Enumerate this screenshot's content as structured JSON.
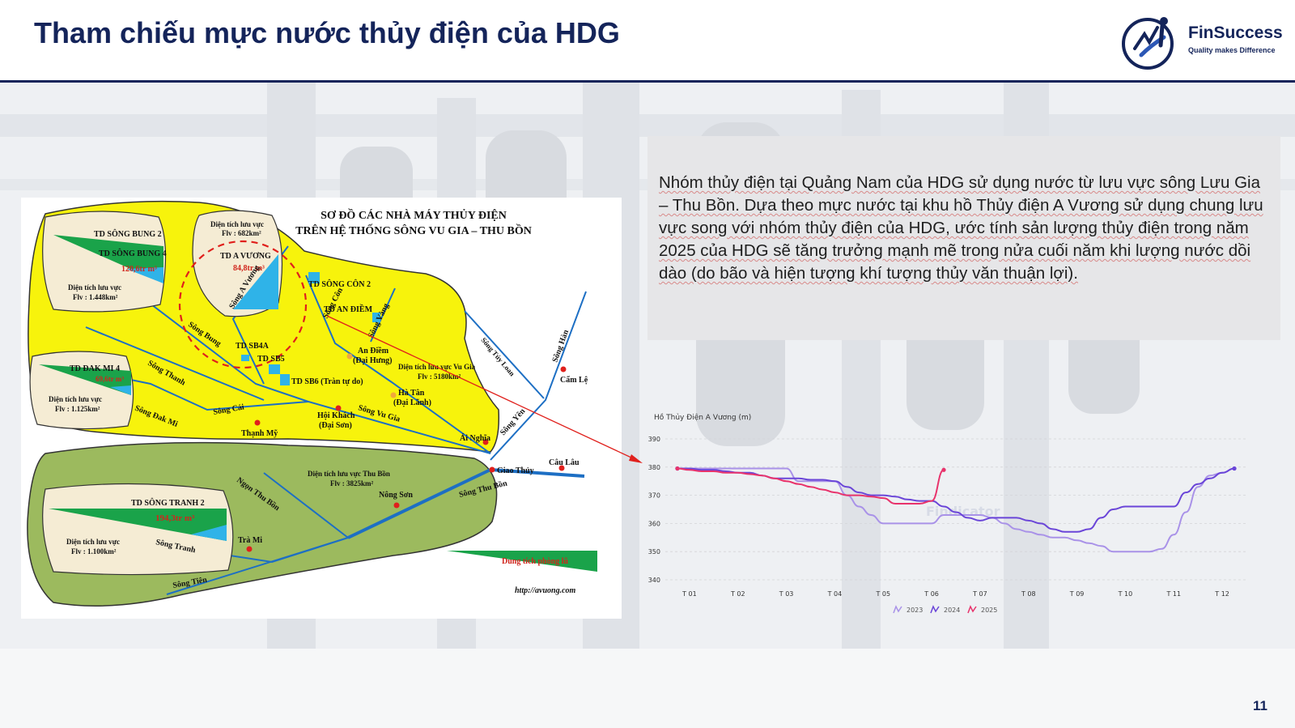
{
  "header": {
    "title": "Tham chiếu mực nước thủy điện của HDG",
    "logo_name": "FinSuccess",
    "logo_tagline": "Quality makes Difference"
  },
  "colors": {
    "navy": "#14245a",
    "map_yellow": "#f7f30c",
    "map_green": "#9cba5e",
    "river_blue": "#1d6fc4",
    "series_2023": "#a992e8",
    "series_2024": "#6a45d8",
    "series_2025": "#e8336c"
  },
  "map": {
    "title_line1": "SƠ ĐỒ CÁC NHÀ MÁY THỦY ĐIỆN",
    "title_line2": "TRÊN HỆ THỐNG SÔNG VU GIA – THU BỒN",
    "song_bung": {
      "plant1": "TD SÔNG BUNG 2",
      "plant2": "TD SÔNG BUNG 4",
      "volume": "120,6tr m³",
      "area_label": "Diện tích lưu vực",
      "area_value": "Flv : 1.448km²"
    },
    "a_vuong": {
      "area_label": "Diện tích lưu vực",
      "area_value": "Flv : 682km²",
      "plant": "TD A VƯƠNG",
      "volume": "84,8tr m³",
      "river": "Sông A Vương"
    },
    "dak_mi": {
      "plant": "TD ĐAK MI 4",
      "volume": "69,6tr m³",
      "area_label": "Diện tích lưu vực",
      "area_value": "Flv : 1.125km²"
    },
    "song_tranh": {
      "plant": "TD SÔNG TRANH 2",
      "volume": "194,3tr m³",
      "area_label": "Diện tích lưu vực",
      "area_value": "Flv : 1.100km²",
      "river": "Sông Tranh"
    },
    "plants": {
      "song_con": "TD SÔNG CÔN 2",
      "an_diem": "TD AN ĐIỀM",
      "sb4a": "TD SB4A",
      "sb5": "TD SB5",
      "sb6": "TD SB6 (Tràn tự do)"
    },
    "vu_gia": {
      "area_label": "Diện tích lưu vực Vu Gia",
      "area_value": "Flv : 5180km²"
    },
    "thu_bon": {
      "area_label": "Diện tích lưu vực Thu Bồn",
      "area_value": "Flv : 3825km²"
    },
    "rivers": {
      "bung": "Sông Bung",
      "con": "Sông Côn",
      "vang": "Sông Vàng",
      "thanh": "Sông Thanh",
      "dak_mi": "Sông Đak Mi",
      "cai": "Sông Cái",
      "vu_gia": "Sông Vu Gia",
      "tuy_loan": "Sông Túy Loan",
      "han": "Sông Hàn",
      "yen": "Sông Yên",
      "thu_bon": "Sông Thu Bồn",
      "ngon_thu_bon": "Ngọn Thu Bồn",
      "tien": "Sông Tiên"
    },
    "places": {
      "an_diem_1": "An Điềm",
      "an_diem_2": "(Đại Hưng)",
      "ha_tan_1": "Hà Tân",
      "ha_tan_2": "(Đại Lãnh)",
      "hoi_khach_1": "Hội Khách",
      "hoi_khach_2": "(Đại Sơn)",
      "thanh_my": "Thạnh Mỹ",
      "ai_nghia": "Ái Nghĩa",
      "cam_le": "Cẩm Lệ",
      "giao_thuy": "Giao Thủy",
      "cau_lau": "Câu Lâu",
      "nong_son": "Nông Sơn",
      "tra_mi": "Trà Mi"
    },
    "legend_flood": "Dung tích phòng lũ",
    "source": "http://avuong.com"
  },
  "description": "Nhóm thủy điện tại Quảng Nam của HDG sử dụng nước từ lưu vực sông Lưu Gia – Thu Bồn. Dựa theo mực nước tại khu hồ Thủy điện A Vương sử dụng chung lưu vực song với nhóm thủy điện của HDG, ước tính sản lượng thủy điện trong năm 2025 của HDG sẽ tăng trưởng mạnh mẽ trong nửa cuối năm khi lượng nước dồi dào (do bão và hiện tượng khí tượng thủy văn thuận lợi).",
  "chart_data": {
    "type": "line",
    "title": "Hồ Thủy Điện A Vương (m)",
    "categories": [
      "T 01",
      "T 02",
      "T 03",
      "T 04",
      "T 05",
      "T 06",
      "T 07",
      "T 08",
      "T 09",
      "T 10",
      "T 11",
      "T 12"
    ],
    "ylim": [
      340,
      390
    ],
    "yticks": [
      340,
      350,
      360,
      370,
      380,
      390
    ],
    "watermark": "Findicator",
    "legend_placement": "bottom-center",
    "series": [
      {
        "name": "2023",
        "x": [
          0.75,
          1,
          1.25,
          1.5,
          1.75,
          2,
          2.25,
          2.5,
          2.75,
          3,
          3.25,
          3.5,
          3.75,
          4,
          4.25,
          4.5,
          4.75,
          5,
          5.25,
          5.5,
          5.75,
          6,
          6.25,
          6.5,
          6.75,
          7,
          7.25,
          7.5,
          7.75,
          8,
          8.25,
          8.5,
          8.75,
          9,
          9.25,
          9.5,
          9.75,
          10,
          10.25,
          10.5,
          10.75,
          11,
          11.25,
          11.5,
          11.75,
          12,
          12.25
        ],
        "values": [
          379.5,
          379.5,
          379.5,
          379.5,
          379.5,
          379.5,
          379.5,
          379.5,
          379.5,
          379.5,
          375,
          375,
          375,
          375,
          370,
          366,
          363,
          360,
          360,
          360,
          360,
          360,
          363,
          363,
          363,
          363,
          362,
          360,
          358,
          357,
          356,
          355,
          355,
          354,
          353,
          352,
          350,
          350,
          350,
          350,
          351,
          356,
          364,
          373,
          377,
          378,
          379.5
        ]
      },
      {
        "name": "2024",
        "x": [
          0.75,
          1,
          1.25,
          1.5,
          1.75,
          2,
          2.25,
          2.5,
          2.75,
          3,
          3.25,
          3.5,
          3.75,
          4,
          4.25,
          4.5,
          4.75,
          5,
          5.25,
          5.5,
          5.75,
          6,
          6.25,
          6.5,
          6.75,
          7,
          7.25,
          7.5,
          7.75,
          8,
          8.25,
          8.5,
          8.75,
          9,
          9.25,
          9.5,
          9.75,
          10,
          10.25,
          10.5,
          10.75,
          11,
          11.25,
          11.5,
          11.75,
          12,
          12.25
        ],
        "values": [
          379.5,
          379.5,
          379,
          379,
          378.5,
          378,
          378,
          377,
          376,
          376,
          376,
          375.5,
          375.5,
          375,
          373,
          371,
          370,
          370,
          369.5,
          368.5,
          368,
          368,
          366,
          364,
          362,
          361,
          362,
          362,
          362,
          361,
          360,
          358,
          357,
          357,
          358,
          362,
          365,
          366,
          366,
          366,
          366,
          366,
          371,
          374,
          376,
          378,
          379.5
        ]
      },
      {
        "name": "2025",
        "x": [
          0.75,
          1,
          1.25,
          1.5,
          1.75,
          2,
          2.25,
          2.5,
          2.75,
          3,
          3.25,
          3.5,
          3.75,
          4,
          4.25,
          4.5,
          4.75,
          5,
          5.25,
          5.5,
          5.75,
          6,
          6.25
        ],
        "values": [
          379.5,
          379,
          378.5,
          378.5,
          378,
          378,
          377.5,
          377,
          376,
          375,
          374,
          373,
          372,
          371,
          370,
          370,
          369.5,
          369,
          367,
          367,
          367,
          368,
          379
        ]
      }
    ]
  },
  "page_number": "11"
}
